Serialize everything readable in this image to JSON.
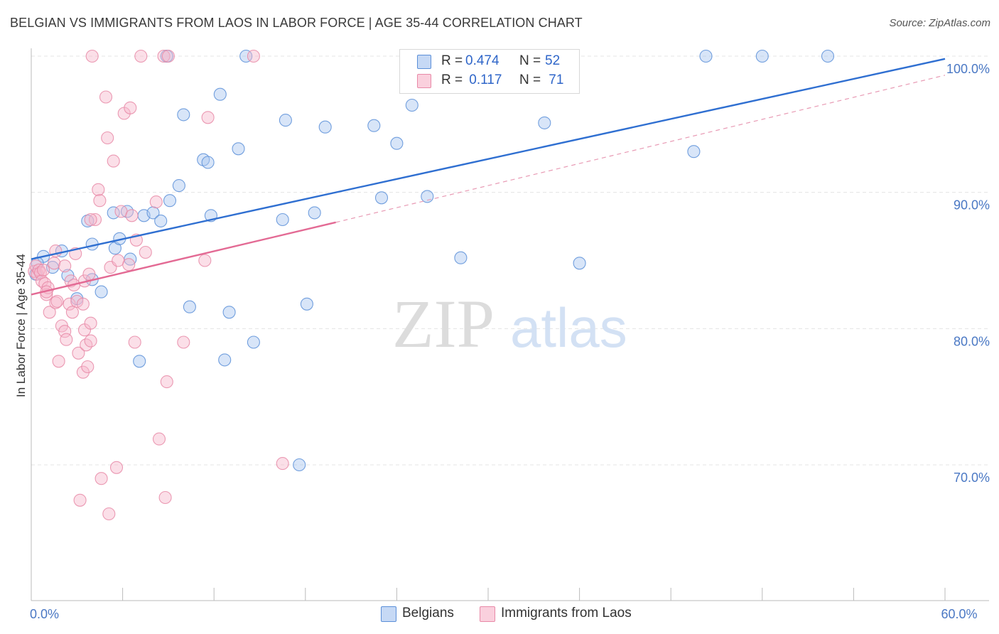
{
  "header": {
    "title": "BELGIAN VS IMMIGRANTS FROM LAOS IN LABOR FORCE | AGE 35-44 CORRELATION CHART",
    "source": "Source: ZipAtlas.com"
  },
  "watermark": {
    "zip": "ZIP",
    "atlas": "atlas"
  },
  "legend": {
    "r_label": "R =",
    "n_label": "N =",
    "rows": [
      {
        "series": "Belgians",
        "r": "0.474",
        "n": "52",
        "color": "#a9c6f0",
        "stroke": "#5b8fd8"
      },
      {
        "series": "Immigrants from Laos",
        "r": " 0.117",
        "n": " 71",
        "color": "#f7b9cc",
        "stroke": "#e889a7"
      }
    ]
  },
  "chart_data": {
    "type": "scatter",
    "title": "BELGIAN VS IMMIGRANTS FROM LAOS IN LABOR FORCE | AGE 35-44 CORRELATION CHART",
    "xlabel": "",
    "ylabel": "In Labor Force | Age 35-44",
    "xlim": [
      0,
      60
    ],
    "ylim": [
      60,
      101.5
    ],
    "x_tick_labels": [
      {
        "value": 0,
        "label": "0.0%"
      },
      {
        "value": 60,
        "label": "60.0%"
      }
    ],
    "y_tick_labels": [
      {
        "value": 100,
        "label": "100.0%"
      },
      {
        "value": 90,
        "label": "90.0%"
      },
      {
        "value": 80,
        "label": "80.0%"
      },
      {
        "value": 70,
        "label": "70.0%"
      }
    ],
    "x_minor_ticks": [
      6,
      12,
      18,
      24,
      30,
      36,
      42,
      48,
      54,
      60
    ],
    "legend_position": "bottom",
    "series": [
      {
        "name": "Belgians",
        "color": "#a9c6f0",
        "stroke": "#5b8fd8",
        "trend": {
          "x": [
            0,
            60
          ],
          "y": [
            85.1,
            99.8
          ],
          "color": "#2f6fd1",
          "style": "solid"
        },
        "points": [
          [
            0.8,
            85.3
          ],
          [
            0.4,
            84.8
          ],
          [
            1.4,
            84.5
          ],
          [
            2.0,
            85.7
          ],
          [
            2.4,
            83.9
          ],
          [
            3.0,
            82.2
          ],
          [
            3.7,
            87.9
          ],
          [
            4.0,
            83.6
          ],
          [
            4.0,
            86.2
          ],
          [
            4.6,
            82.7
          ],
          [
            5.4,
            88.5
          ],
          [
            5.5,
            85.9
          ],
          [
            5.8,
            86.6
          ],
          [
            6.3,
            88.6
          ],
          [
            6.5,
            85.1
          ],
          [
            7.1,
            77.6
          ],
          [
            7.4,
            88.3
          ],
          [
            8.0,
            88.5
          ],
          [
            8.5,
            87.9
          ],
          [
            8.9,
            100.0
          ],
          [
            9.1,
            89.4
          ],
          [
            9.7,
            90.5
          ],
          [
            10.0,
            95.7
          ],
          [
            10.4,
            81.6
          ],
          [
            11.3,
            92.4
          ],
          [
            11.6,
            92.2
          ],
          [
            11.8,
            88.3
          ],
          [
            12.4,
            97.2
          ],
          [
            12.7,
            77.7
          ],
          [
            13.0,
            81.2
          ],
          [
            13.6,
            93.2
          ],
          [
            14.1,
            100.0
          ],
          [
            14.6,
            79.0
          ],
          [
            16.5,
            88.0
          ],
          [
            16.7,
            95.3
          ],
          [
            17.6,
            70.0
          ],
          [
            18.1,
            81.8
          ],
          [
            18.6,
            88.5
          ],
          [
            19.3,
            94.8
          ],
          [
            22.5,
            94.9
          ],
          [
            23.0,
            89.6
          ],
          [
            24.0,
            93.6
          ],
          [
            25.0,
            96.4
          ],
          [
            26.0,
            89.7
          ],
          [
            28.2,
            85.2
          ],
          [
            33.7,
            95.1
          ],
          [
            36.0,
            84.8
          ],
          [
            43.5,
            93.0
          ],
          [
            44.3,
            100.0
          ],
          [
            48.0,
            100.0
          ],
          [
            52.3,
            100.0
          ],
          [
            0.3,
            84.0
          ]
        ]
      },
      {
        "name": "Immigrants from Laos",
        "color": "#f7b9cc",
        "stroke": "#e889a7",
        "trend": {
          "x": [
            0,
            20
          ],
          "y": [
            82.5,
            87.8
          ],
          "color": "#e36a94",
          "style": "solid"
        },
        "trend_extended": {
          "x": [
            20,
            60
          ],
          "y": [
            87.8,
            98.6
          ],
          "color": "#e89ab4",
          "style": "dashed"
        },
        "points": [
          [
            0.2,
            84.2
          ],
          [
            0.3,
            84.6
          ],
          [
            0.4,
            84.0
          ],
          [
            0.5,
            84.3
          ],
          [
            0.6,
            84.1
          ],
          [
            0.7,
            83.5
          ],
          [
            0.8,
            84.3
          ],
          [
            0.9,
            83.3
          ],
          [
            1.0,
            82.5
          ],
          [
            1.1,
            83.0
          ],
          [
            1.2,
            81.2
          ],
          [
            1.5,
            84.8
          ],
          [
            1.6,
            85.7
          ],
          [
            1.6,
            81.9
          ],
          [
            1.7,
            82.0
          ],
          [
            1.8,
            77.6
          ],
          [
            2.0,
            80.2
          ],
          [
            2.2,
            79.8
          ],
          [
            2.3,
            79.2
          ],
          [
            2.5,
            81.8
          ],
          [
            2.6,
            83.5
          ],
          [
            2.7,
            81.2
          ],
          [
            2.8,
            83.2
          ],
          [
            2.9,
            85.5
          ],
          [
            3.0,
            82.0
          ],
          [
            3.1,
            78.2
          ],
          [
            3.2,
            67.4
          ],
          [
            3.4,
            81.8
          ],
          [
            3.5,
            79.9
          ],
          [
            3.4,
            76.8
          ],
          [
            3.6,
            78.8
          ],
          [
            3.7,
            77.2
          ],
          [
            3.9,
            79.1
          ],
          [
            3.9,
            80.4
          ],
          [
            3.5,
            83.5
          ],
          [
            3.8,
            84.0
          ],
          [
            4.0,
            100.0
          ],
          [
            4.2,
            88.0
          ],
          [
            4.4,
            90.2
          ],
          [
            4.5,
            89.4
          ],
          [
            4.6,
            69.0
          ],
          [
            4.9,
            97.0
          ],
          [
            5.0,
            94.0
          ],
          [
            5.1,
            66.4
          ],
          [
            5.2,
            84.5
          ],
          [
            5.4,
            92.3
          ],
          [
            5.6,
            69.8
          ],
          [
            5.7,
            85.0
          ],
          [
            5.9,
            88.6
          ],
          [
            6.1,
            95.8
          ],
          [
            6.4,
            84.7
          ],
          [
            6.5,
            96.2
          ],
          [
            6.6,
            88.3
          ],
          [
            6.8,
            79.0
          ],
          [
            6.9,
            86.5
          ],
          [
            7.2,
            100.0
          ],
          [
            7.5,
            85.6
          ],
          [
            8.2,
            89.3
          ],
          [
            8.4,
            71.9
          ],
          [
            8.7,
            100.0
          ],
          [
            8.8,
            67.6
          ],
          [
            8.9,
            76.1
          ],
          [
            9.0,
            100.0
          ],
          [
            10.0,
            79.0
          ],
          [
            11.4,
            85.0
          ],
          [
            11.6,
            95.5
          ],
          [
            14.6,
            100.0
          ],
          [
            16.5,
            70.1
          ],
          [
            3.9,
            88.0
          ],
          [
            2.2,
            84.6
          ],
          [
            1.0,
            82.7
          ]
        ]
      }
    ]
  }
}
